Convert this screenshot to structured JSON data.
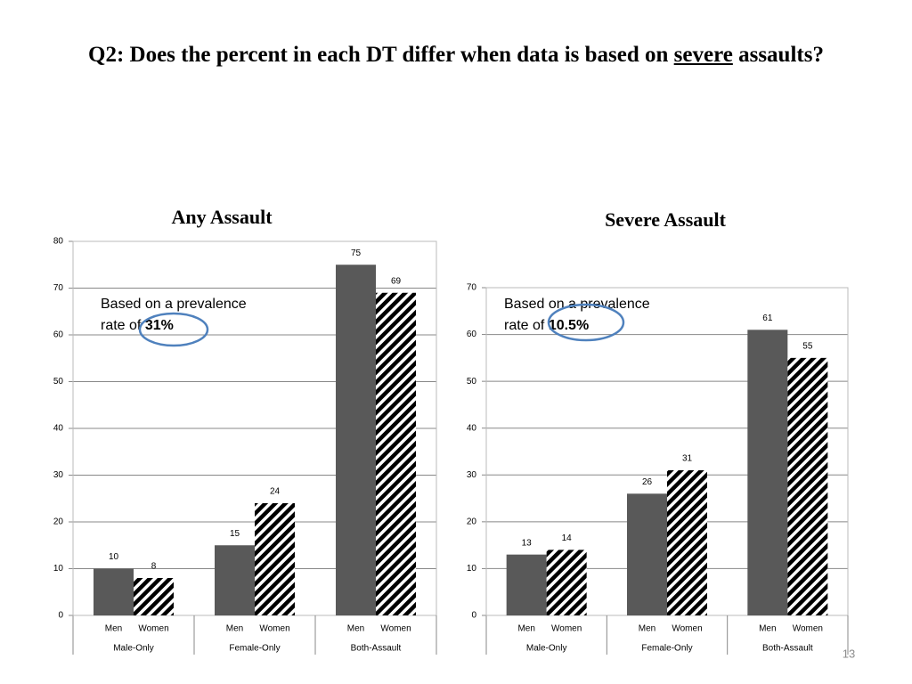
{
  "slide": {
    "title_before": "Q2: Does the percent in each DT differ when data is based on",
    "title_emphasis": "severe",
    "title_after": "assaults?",
    "page_number": "13"
  },
  "chart_data": [
    {
      "type": "bar",
      "title": "Any Assault",
      "categories": [
        "Male-Only",
        "Female-Only",
        "Both-Assault"
      ],
      "series": [
        {
          "name": "Men",
          "color": "#595959",
          "pattern": "solid",
          "values": [
            10,
            15,
            75
          ]
        },
        {
          "name": "Women",
          "color": "#000000",
          "pattern": "diagonal-stripes",
          "values": [
            8,
            24,
            69
          ]
        }
      ],
      "ylim": [
        0,
        80
      ],
      "yticks": [
        0,
        10,
        20,
        30,
        40,
        50,
        60,
        70,
        80
      ],
      "grid": true,
      "annotation_lines": [
        "Based on a prevalence",
        "rate of"
      ],
      "annotation_highlight": "31%"
    },
    {
      "type": "bar",
      "title": "Severe Assault",
      "categories": [
        "Male-Only",
        "Female-Only",
        "Both-Assault"
      ],
      "series": [
        {
          "name": "Men",
          "color": "#595959",
          "pattern": "solid",
          "values": [
            13,
            26,
            61
          ]
        },
        {
          "name": "Women",
          "color": "#000000",
          "pattern": "diagonal-stripes",
          "values": [
            14,
            31,
            55
          ]
        }
      ],
      "ylim": [
        0,
        70
      ],
      "yticks": [
        0,
        10,
        20,
        30,
        40,
        50,
        60,
        70
      ],
      "grid": true,
      "annotation_lines": [
        "Based on a prevalence",
        "rate of"
      ],
      "annotation_highlight": "10.5%"
    }
  ]
}
